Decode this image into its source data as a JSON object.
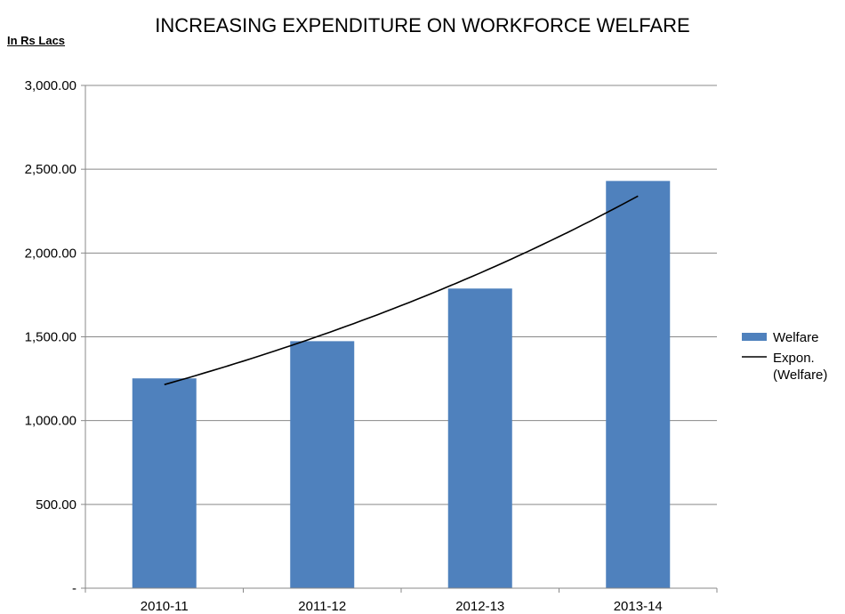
{
  "chart_data": {
    "type": "bar",
    "title": "INCREASING EXPENDITURE ON WORKFORCE WELFARE",
    "unit_label": "In Rs Lacs",
    "categories": [
      "2010-11",
      "2011-12",
      "2012-13",
      "2013-14"
    ],
    "series": [
      {
        "name": "Welfare",
        "values": [
          1252,
          1474,
          1788,
          2430
        ],
        "color": "#4F81BD"
      }
    ],
    "trendline": {
      "name_lines": [
        "Expon.",
        "(Welfare)"
      ],
      "kind": "exponential",
      "values": [
        1215,
        1487,
        1837,
        2340
      ],
      "color": "#000000"
    },
    "y_ticks": [
      "-",
      "500.00",
      "1,000.00",
      "1,500.00",
      "2,000.00",
      "2,500.00",
      "3,000.00"
    ],
    "ylim": [
      0,
      3000
    ],
    "grid": true,
    "legend_position": "right"
  }
}
